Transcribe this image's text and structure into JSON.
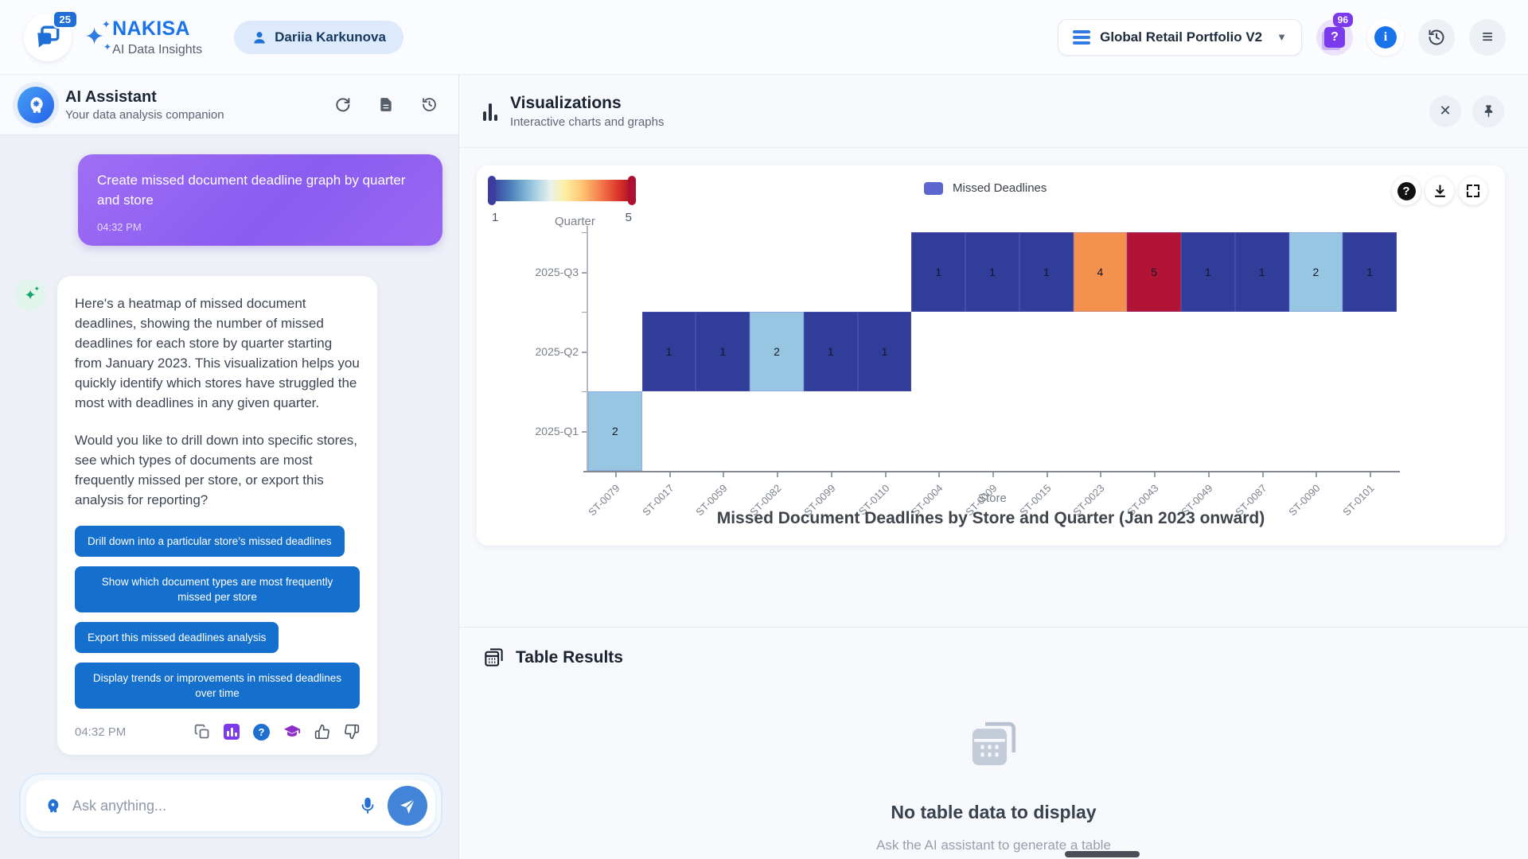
{
  "header": {
    "logo_badge": "25",
    "brand": "NAKISA",
    "brand_sub": "AI Data Insights",
    "user_name": "Dariia Karkunova",
    "portfolio": "Global Retail Portfolio V2",
    "help_badge": "96",
    "help_glyph": "?",
    "info_glyph": "i"
  },
  "assistant_panel": {
    "title": "AI Assistant",
    "subtitle": "Your data analysis companion",
    "user_message": {
      "text": "Create missed document deadline graph by quarter and store",
      "time": "04:32 PM"
    },
    "response": {
      "p1": "Here's a heatmap of missed document deadlines, showing the number of missed deadlines for each store by quarter starting from January 2023. This visualization helps you quickly identify which stores have struggled the most with deadlines in any given quarter.",
      "p2": "Would you like to drill down into specific stores, see which types of documents are most frequently missed per store, or export this analysis for reporting?",
      "time": "04:32 PM"
    },
    "actions": [
      "Drill down into a particular store’s missed deadlines",
      "Show which document types are most frequently missed per store",
      "Export this missed deadlines analysis",
      "Display trends or improvements in missed deadlines over time"
    ],
    "input_placeholder": "Ask anything..."
  },
  "visualizations": {
    "title": "Visualizations",
    "subtitle": "Interactive charts and graphs",
    "legend_label": "Missed Deadlines",
    "toolbar_help_glyph": "?"
  },
  "chart_data": {
    "type": "heatmap",
    "title": "Missed Document Deadlines by Store and Quarter (Jan 2023 onward)",
    "xlabel": "Store",
    "ylabel": "Quarter",
    "x_categories": [
      "ST-0079",
      "ST-0017",
      "ST-0059",
      "ST-0082",
      "ST-0099",
      "ST-0110",
      "ST-0004",
      "ST-0009",
      "ST-0015",
      "ST-0023",
      "ST-0043",
      "ST-0049",
      "ST-0087",
      "ST-0090",
      "ST-0101"
    ],
    "y_categories": [
      "2025-Q3",
      "2025-Q2",
      "2025-Q1"
    ],
    "cells": [
      {
        "x": "ST-0079",
        "y": "2025-Q1",
        "value": 2
      },
      {
        "x": "ST-0017",
        "y": "2025-Q2",
        "value": 1
      },
      {
        "x": "ST-0059",
        "y": "2025-Q2",
        "value": 1
      },
      {
        "x": "ST-0082",
        "y": "2025-Q2",
        "value": 2
      },
      {
        "x": "ST-0099",
        "y": "2025-Q2",
        "value": 1
      },
      {
        "x": "ST-0110",
        "y": "2025-Q2",
        "value": 1
      },
      {
        "x": "ST-0004",
        "y": "2025-Q3",
        "value": 1
      },
      {
        "x": "ST-0009",
        "y": "2025-Q3",
        "value": 1
      },
      {
        "x": "ST-0015",
        "y": "2025-Q3",
        "value": 1
      },
      {
        "x": "ST-0023",
        "y": "2025-Q3",
        "value": 4
      },
      {
        "x": "ST-0043",
        "y": "2025-Q3",
        "value": 5
      },
      {
        "x": "ST-0049",
        "y": "2025-Q3",
        "value": 1
      },
      {
        "x": "ST-0087",
        "y": "2025-Q3",
        "value": 1
      },
      {
        "x": "ST-0090",
        "y": "2025-Q3",
        "value": 2
      },
      {
        "x": "ST-0101",
        "y": "2025-Q3",
        "value": 1
      }
    ],
    "value_colors": {
      "1": "#303d99",
      "2": "#96c6e2",
      "4": "#f5914e",
      "5": "#b11434"
    },
    "colorbar": {
      "min": "1",
      "max": "5"
    },
    "legend": "Missed Deadlines"
  },
  "table_results": {
    "title": "Table Results",
    "empty_title": "No table data to display",
    "empty_subtitle": "Ask the AI assistant to generate a table"
  }
}
